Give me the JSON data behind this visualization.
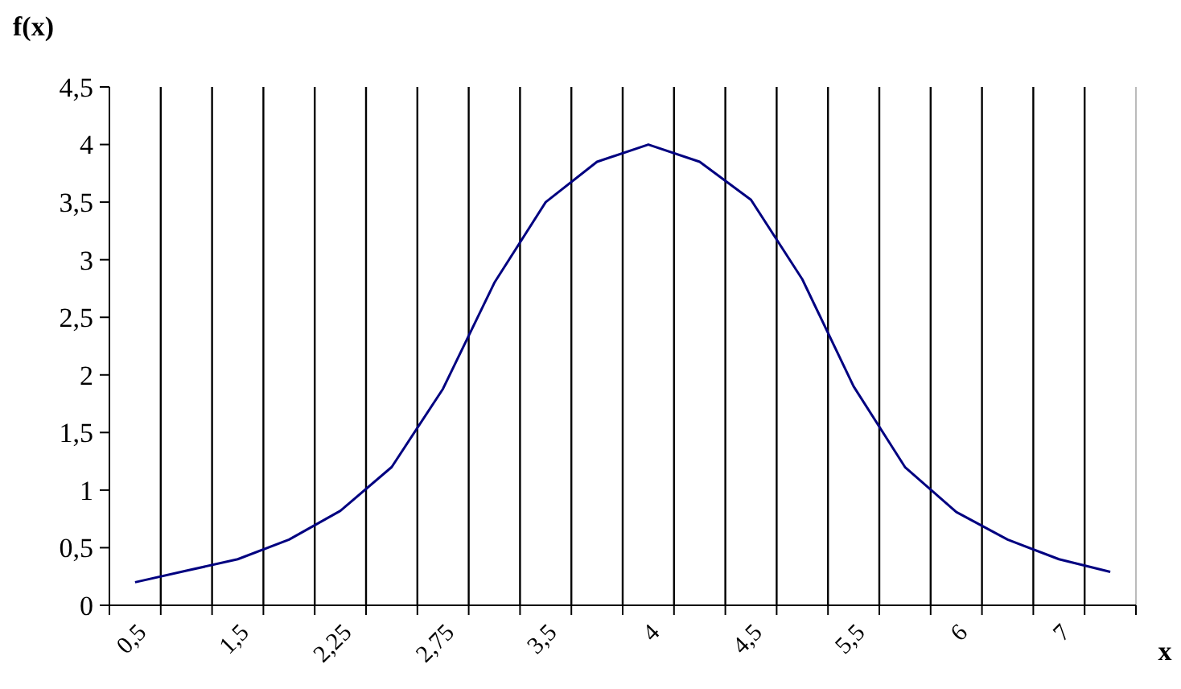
{
  "chart_data": {
    "type": "line",
    "xlabel": "x",
    "ylabel": "f(x)",
    "categories": [
      "0,5",
      null,
      "1,5",
      null,
      "2,25",
      null,
      "2,75",
      null,
      "3,5",
      null,
      "4",
      null,
      "4,5",
      null,
      "5,5",
      null,
      "6",
      null,
      "7",
      null
    ],
    "series": [
      {
        "color": "#000080",
        "values": [
          0.2,
          0.3,
          0.4,
          0.57,
          0.82,
          1.2,
          1.88,
          2.8,
          3.5,
          3.85,
          4.0,
          3.85,
          3.52,
          2.83,
          1.9,
          1.2,
          0.81,
          0.57,
          0.4,
          0.29
        ]
      }
    ],
    "ylim": [
      0,
      4.5
    ],
    "yticks": [
      0,
      {
        "value": 0.5,
        "label": "0,5"
      },
      1,
      {
        "value": 1.5,
        "label": "1,5"
      },
      2,
      {
        "value": 2.5,
        "label": "2,5"
      },
      3,
      {
        "value": 3.5,
        "label": "3,5"
      },
      4,
      {
        "value": 4.5,
        "label": "4,5"
      }
    ],
    "grid": "x",
    "marker": "none",
    "line_style": "solid"
  }
}
